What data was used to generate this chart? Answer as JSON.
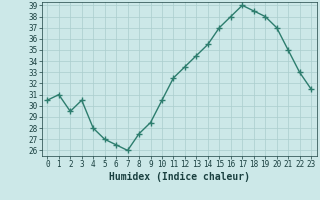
{
  "x": [
    0,
    1,
    2,
    3,
    4,
    5,
    6,
    7,
    8,
    9,
    10,
    11,
    12,
    13,
    14,
    15,
    16,
    17,
    18,
    19,
    20,
    21,
    22,
    23
  ],
  "y": [
    30.5,
    31.0,
    29.5,
    30.5,
    28.0,
    27.0,
    26.5,
    26.0,
    27.5,
    28.5,
    30.5,
    32.5,
    33.5,
    34.5,
    35.5,
    37.0,
    38.0,
    39.0,
    38.5,
    38.0,
    37.0,
    35.0,
    33.0,
    31.5
  ],
  "line_color": "#2d7d6e",
  "marker": "+",
  "bg_color": "#cce8e8",
  "grid_color": "#aacece",
  "xlabel": "Humidex (Indice chaleur)",
  "ylim_min": 25.5,
  "ylim_max": 39.3,
  "xlim_min": -0.5,
  "xlim_max": 23.5,
  "yticks": [
    26,
    27,
    28,
    29,
    30,
    31,
    32,
    33,
    34,
    35,
    36,
    37,
    38,
    39
  ],
  "xticks": [
    0,
    1,
    2,
    3,
    4,
    5,
    6,
    7,
    8,
    9,
    10,
    11,
    12,
    13,
    14,
    15,
    16,
    17,
    18,
    19,
    20,
    21,
    22,
    23
  ],
  "font_color": "#1a4040",
  "tick_fontsize": 5.5,
  "xlabel_fontsize": 7.0,
  "linewidth": 1.0,
  "markersize": 4.5,
  "markeredgewidth": 1.0
}
